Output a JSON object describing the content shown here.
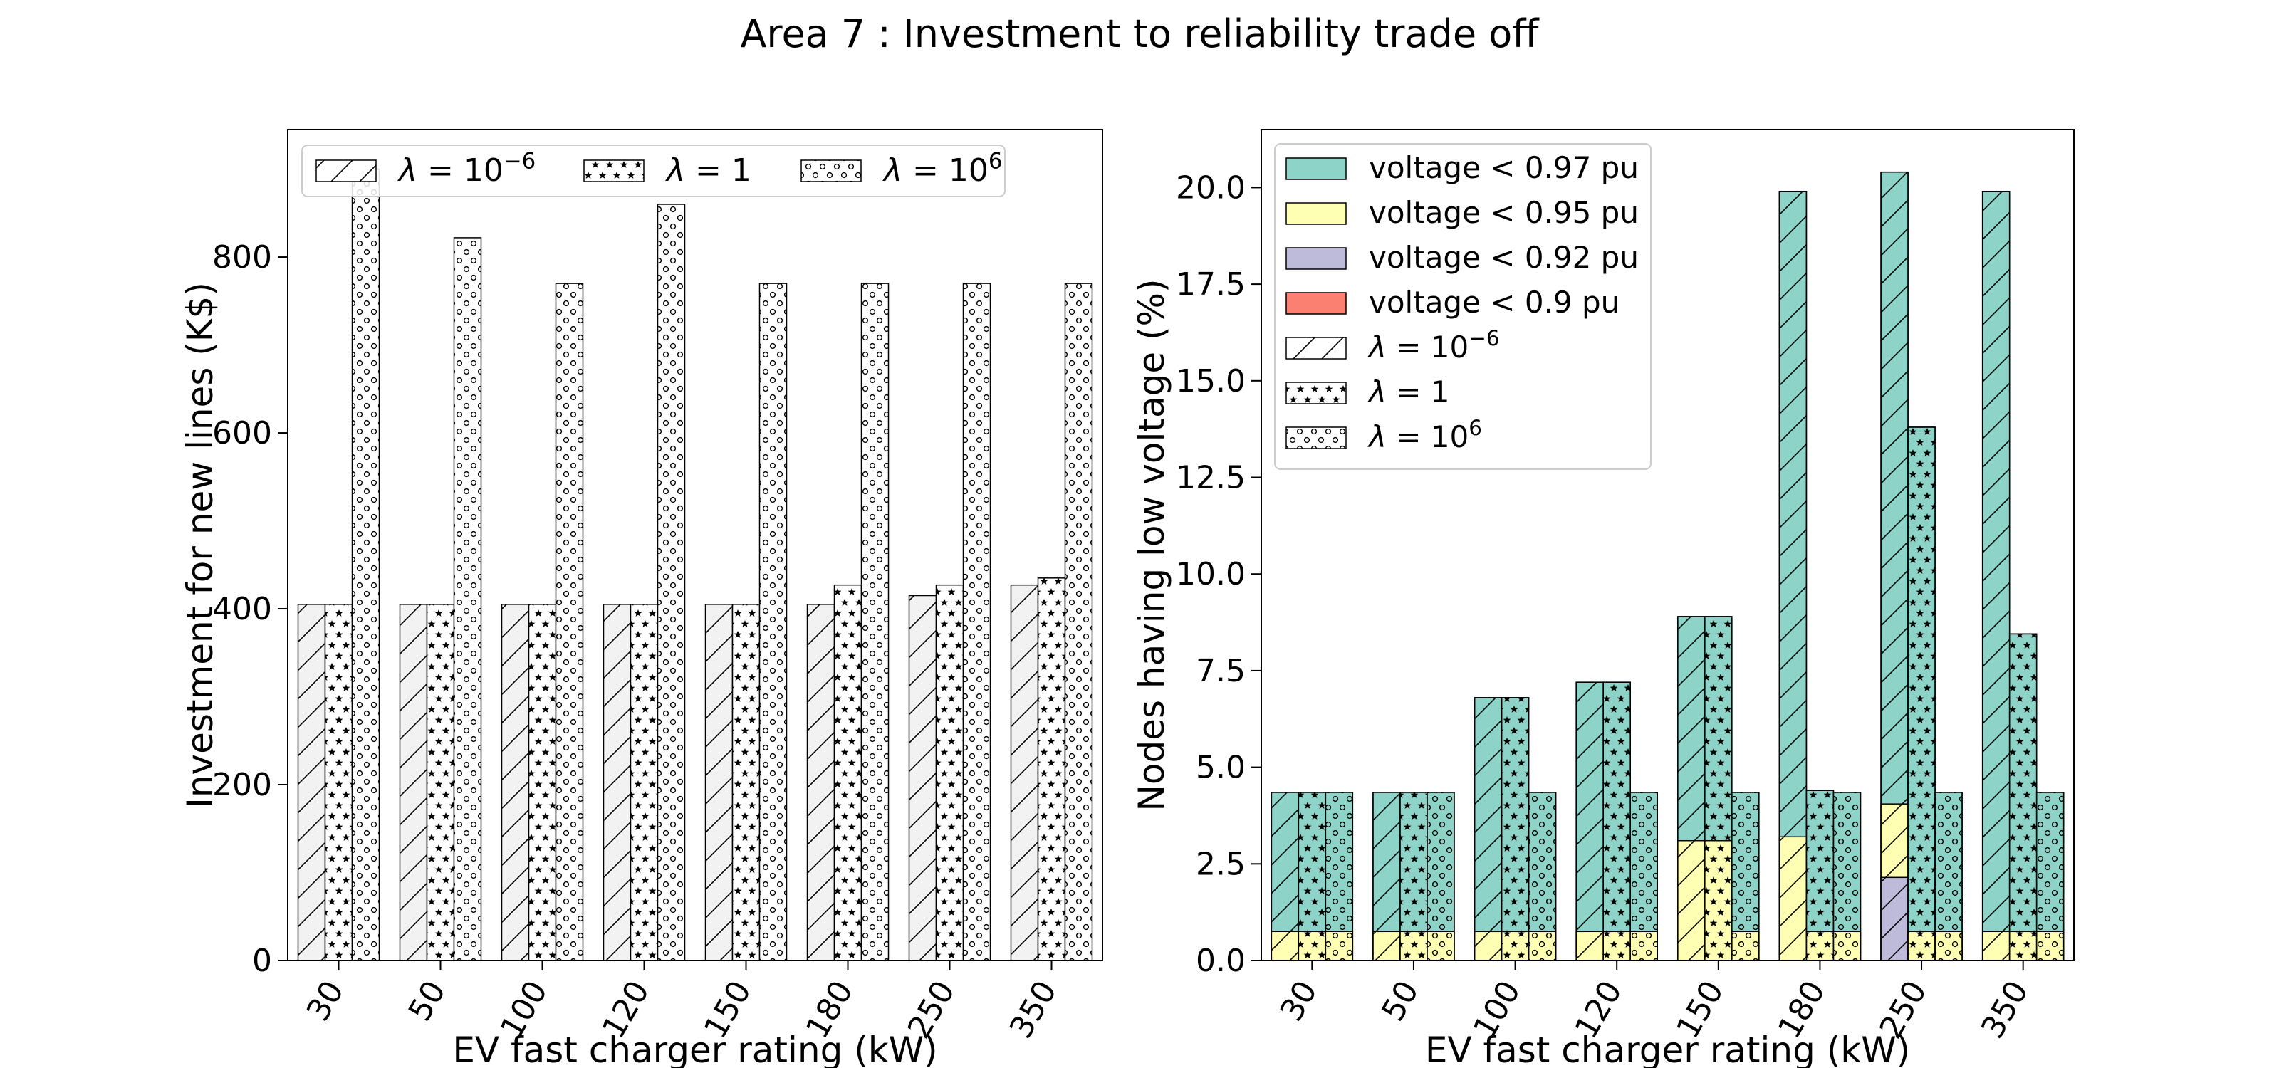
{
  "figure": {
    "title": "Area 7 : Investment to reliability trade off"
  },
  "colors": {
    "v097": "#8dd3c7",
    "v095": "#ffffb3",
    "v092": "#bebada",
    "v090": "#fb8072",
    "invest_fill": "#f2f2f2"
  },
  "chart_data": [
    {
      "id": "investment",
      "type": "bar",
      "title": "",
      "xlabel": "EV fast charger rating (kW)",
      "ylabel": "Investment for new lines (K$)",
      "categories": [
        "30",
        "50",
        "100",
        "120",
        "150",
        "180",
        "250",
        "350"
      ],
      "ylim": [
        0,
        945
      ],
      "yticks": [
        0,
        200,
        400,
        600,
        800
      ],
      "grid": false,
      "legend_position": "top",
      "series": [
        {
          "name": "λ = 10⁻⁶",
          "hatch": "diagonal",
          "values": [
            405,
            405,
            405,
            405,
            405,
            405,
            415,
            427
          ]
        },
        {
          "name": "λ = 1",
          "hatch": "stars",
          "values": [
            405,
            405,
            405,
            405,
            405,
            427,
            427,
            435
          ]
        },
        {
          "name": "λ = 10⁶",
          "hatch": "circles",
          "values": [
            900,
            822,
            770,
            860,
            770,
            770,
            770,
            770
          ]
        }
      ]
    },
    {
      "id": "low-voltage",
      "type": "bar",
      "stacked": true,
      "title": "",
      "xlabel": "EV fast charger rating (kW)",
      "ylabel": "Nodes having low voltage (%)",
      "categories": [
        "30",
        "50",
        "100",
        "120",
        "150",
        "180",
        "250",
        "350"
      ],
      "ylim": [
        0,
        21.5
      ],
      "yticks": [
        0.0,
        2.5,
        5.0,
        7.5,
        10.0,
        12.5,
        15.0,
        17.5,
        20.0
      ],
      "grid": false,
      "legend_position": "top-left",
      "color_legend": [
        "voltage < 0.97 pu",
        "voltage < 0.95 pu",
        "voltage < 0.92 pu",
        "voltage < 0.9 pu"
      ],
      "hatch_legend": [
        "λ = 10⁻⁶",
        "λ = 1",
        "λ = 10⁶"
      ],
      "series": [
        {
          "name": "λ = 10⁻⁶",
          "hatch": "diagonal",
          "v097": [
            4.35,
            4.35,
            6.8,
            7.2,
            8.9,
            19.9,
            20.4,
            19.9
          ],
          "v095": [
            0.75,
            0.75,
            0.75,
            0.75,
            3.1,
            3.2,
            4.05,
            0.75
          ],
          "v092": [
            0,
            0,
            0,
            0,
            0,
            0,
            2.15,
            0
          ],
          "v090": [
            0,
            0,
            0,
            0,
            0,
            0,
            0,
            0
          ]
        },
        {
          "name": "λ = 1",
          "hatch": "stars",
          "v097": [
            4.35,
            4.35,
            6.8,
            7.2,
            8.9,
            4.4,
            13.8,
            8.45
          ],
          "v095": [
            0.75,
            0.75,
            0.75,
            0.75,
            3.1,
            0.75,
            0.75,
            0.75
          ],
          "v092": [
            0,
            0,
            0,
            0,
            0,
            0,
            0,
            0
          ],
          "v090": [
            0,
            0,
            0,
            0,
            0,
            0,
            0,
            0
          ]
        },
        {
          "name": "λ = 10⁶",
          "hatch": "circles",
          "v097": [
            4.35,
            4.35,
            4.35,
            4.35,
            4.35,
            4.35,
            4.35,
            4.35
          ],
          "v095": [
            0.75,
            0.75,
            0.75,
            0.75,
            0.75,
            0.75,
            0.75,
            0.75
          ],
          "v092": [
            0,
            0,
            0,
            0,
            0,
            0,
            0,
            0
          ],
          "v090": [
            0,
            0,
            0,
            0,
            0,
            0,
            0,
            0
          ]
        }
      ]
    }
  ]
}
